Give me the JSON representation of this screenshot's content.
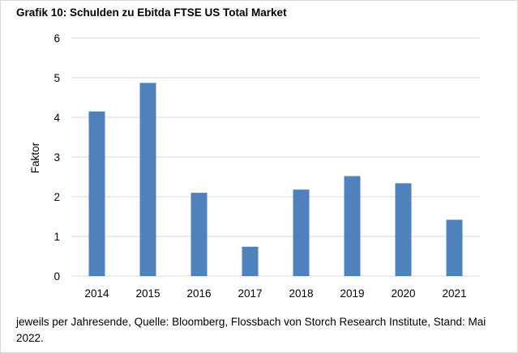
{
  "chart_title": "Grafik 10: Schulden zu Ebitda FTSE US Total Market",
  "source_note": "jeweils per Jahresende, Quelle: Bloomberg, Flossbach von Storch Research Institute, Stand: Mai 2022.",
  "colors": {
    "bar": "#4f81bd",
    "grid": "#d9d9d9",
    "text": "#000000"
  },
  "chart_data": {
    "type": "bar",
    "title": "Grafik 10: Schulden zu Ebitda FTSE US Total Market",
    "xlabel": "",
    "ylabel": "Faktor",
    "categories": [
      "2014",
      "2015",
      "2016",
      "2017",
      "2018",
      "2019",
      "2020",
      "2021"
    ],
    "values": [
      4.15,
      4.87,
      2.1,
      0.74,
      2.18,
      2.52,
      2.34,
      1.42
    ],
    "ylim": [
      0,
      6
    ],
    "yticks": [
      0,
      1,
      2,
      3,
      4,
      5,
      6
    ],
    "grid": true,
    "legend": "none"
  }
}
